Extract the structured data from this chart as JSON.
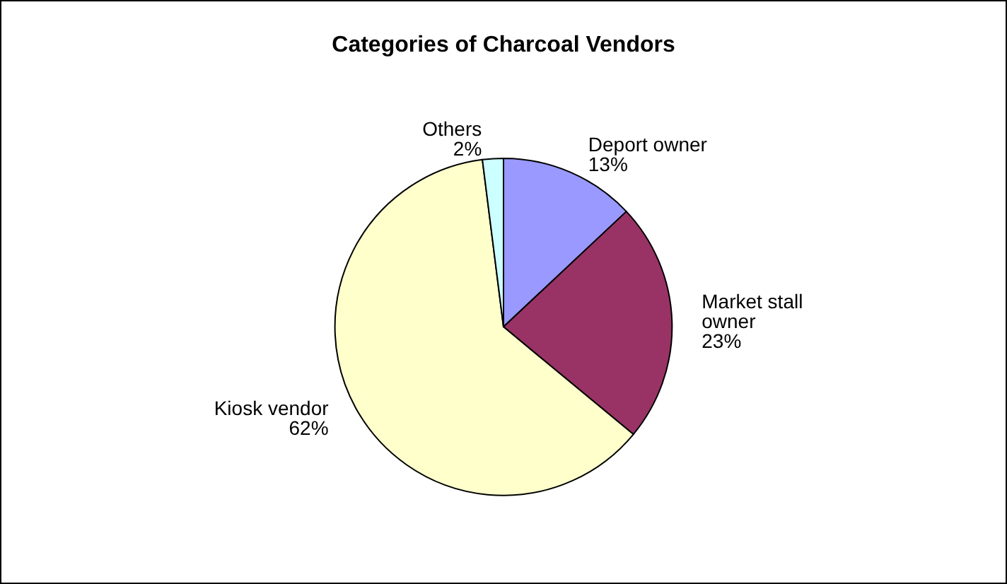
{
  "chart_data": {
    "type": "pie",
    "title": "Categories of Charcoal Vendors",
    "categories": [
      "Deport owner",
      "Market stall owner",
      "Kiosk vendor",
      "Others"
    ],
    "values": [
      13,
      23,
      62,
      2
    ],
    "colors": [
      "#9999ff",
      "#993366",
      "#ffffcc",
      "#ccffff"
    ],
    "value_labels": [
      "13%",
      "23%",
      "62%",
      "2%"
    ],
    "legend": false
  }
}
